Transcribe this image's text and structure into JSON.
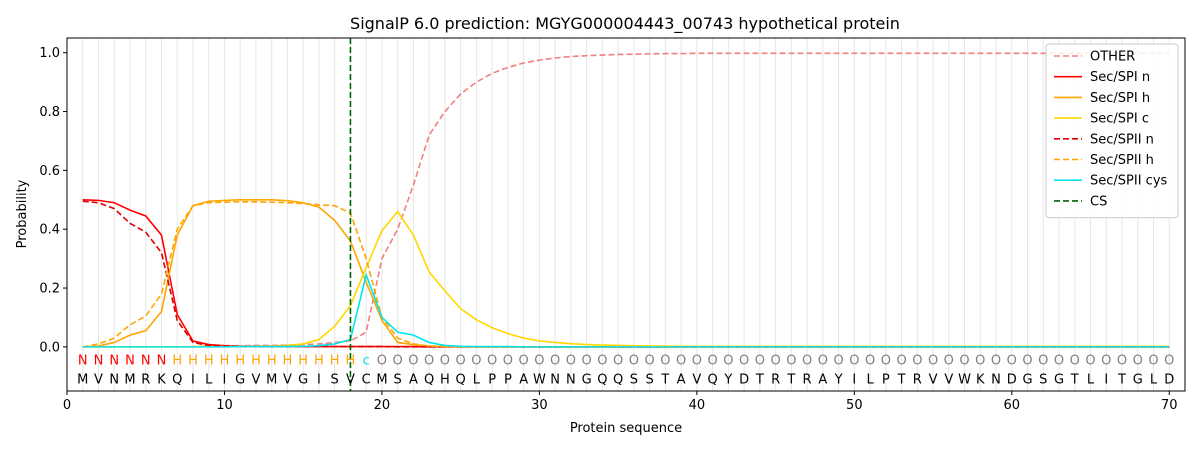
{
  "chart_data": {
    "type": "line",
    "title": "SignalP 6.0 prediction: MGYG000004443_00743 hypothetical protein",
    "xlabel": "Protein sequence",
    "ylabel": "Probability",
    "xlim": [
      0,
      71
    ],
    "ylim": [
      -0.15,
      1.05
    ],
    "xticks": [
      "0",
      "10",
      "20",
      "30",
      "40",
      "50",
      "60",
      "70"
    ],
    "yticks": [
      "0.0",
      "0.2",
      "0.4",
      "0.6",
      "0.8",
      "1.0"
    ],
    "grid": "vertical lines at each residue",
    "legend_position": "top-right",
    "sequence": "MVNMRKQILIGVMVGISVCMSAQHQLPPAWNNGQQSSTAVQYDTRTRAYILPTRVVWKNDGSGTLITGLD",
    "labels": "NNNNNNHHHHHHHHHHHHcOOOOOOOOOOOOOOOOOOOOOOOOOOOOOOOOOOOOOOOOOOOOOOOOOOO",
    "label_colors": {
      "N": "#ff0000",
      "H": "#ffa500",
      "c": "#00e5ee",
      "O": "#808080"
    },
    "cs_position": 18,
    "series": [
      {
        "name": "OTHER",
        "color": "#f08080",
        "dash": "dashed",
        "values": [
          0.0,
          0.0,
          0.0,
          0.0,
          0.0,
          0.0,
          0.0,
          0.0,
          0.003,
          0.004,
          0.004,
          0.005,
          0.005,
          0.006,
          0.008,
          0.01,
          0.015,
          0.02,
          0.05,
          0.3,
          0.4,
          0.55,
          0.72,
          0.8,
          0.86,
          0.9,
          0.93,
          0.95,
          0.965,
          0.975,
          0.982,
          0.987,
          0.99,
          0.992,
          0.994,
          0.995,
          0.996,
          0.997,
          0.997,
          0.998,
          0.998,
          0.998,
          0.998,
          0.998,
          0.998,
          0.998,
          0.998,
          0.998,
          0.998,
          0.998,
          0.998,
          0.998,
          0.998,
          0.998,
          0.998,
          0.998,
          0.998,
          0.998,
          0.998,
          0.998,
          0.998,
          0.998,
          0.998,
          0.998,
          0.998,
          0.998,
          0.998,
          0.998,
          0.998,
          0.998
        ]
      },
      {
        "name": "Sec/SPI n",
        "color": "#ff0000",
        "dash": "solid",
        "values": [
          0.5,
          0.498,
          0.49,
          0.465,
          0.445,
          0.38,
          0.11,
          0.02,
          0.008,
          0.004,
          0.002,
          0.002,
          0.001,
          0.001,
          0.001,
          0.001,
          0.001,
          0.001,
          0.001,
          0.001,
          0.001,
          0.001,
          0.0,
          0.0,
          0.0,
          0.0,
          0.0,
          0.0,
          0.0,
          0.0,
          0.0,
          0.0,
          0.0,
          0.0,
          0.0,
          0.0,
          0.0,
          0.0,
          0.0,
          0.0,
          0.0,
          0.0,
          0.0,
          0.0,
          0.0,
          0.0,
          0.0,
          0.0,
          0.0,
          0.0,
          0.0,
          0.0,
          0.0,
          0.0,
          0.0,
          0.0,
          0.0,
          0.0,
          0.0,
          0.0,
          0.0,
          0.0,
          0.0,
          0.0,
          0.0,
          0.0,
          0.0,
          0.0,
          0.0,
          0.0
        ]
      },
      {
        "name": "Sec/SPI h",
        "color": "#ffa500",
        "dash": "solid",
        "values": [
          0.0,
          0.003,
          0.015,
          0.04,
          0.055,
          0.12,
          0.38,
          0.48,
          0.495,
          0.498,
          0.5,
          0.5,
          0.5,
          0.497,
          0.49,
          0.475,
          0.43,
          0.36,
          0.22,
          0.09,
          0.015,
          0.008,
          0.003,
          0.001,
          0.0,
          0.0,
          0.0,
          0.0,
          0.0,
          0.0,
          0.0,
          0.0,
          0.0,
          0.0,
          0.0,
          0.0,
          0.0,
          0.0,
          0.0,
          0.0,
          0.0,
          0.0,
          0.0,
          0.0,
          0.0,
          0.0,
          0.0,
          0.0,
          0.0,
          0.0,
          0.0,
          0.0,
          0.0,
          0.0,
          0.0,
          0.0,
          0.0,
          0.0,
          0.0,
          0.0,
          0.0,
          0.0,
          0.0,
          0.0,
          0.0,
          0.0,
          0.0,
          0.0,
          0.0,
          0.0
        ]
      },
      {
        "name": "Sec/SPI c",
        "color": "#ffd700",
        "dash": "solid",
        "values": [
          0.0,
          0.0,
          0.0,
          0.0,
          0.0,
          0.0,
          0.0,
          0.001,
          0.001,
          0.001,
          0.002,
          0.002,
          0.003,
          0.005,
          0.01,
          0.025,
          0.07,
          0.14,
          0.27,
          0.395,
          0.46,
          0.38,
          0.255,
          0.19,
          0.13,
          0.092,
          0.065,
          0.045,
          0.03,
          0.02,
          0.015,
          0.011,
          0.008,
          0.006,
          0.005,
          0.004,
          0.003,
          0.003,
          0.002,
          0.002,
          0.002,
          0.002,
          0.002,
          0.002,
          0.002,
          0.002,
          0.002,
          0.002,
          0.002,
          0.002,
          0.002,
          0.002,
          0.002,
          0.002,
          0.002,
          0.002,
          0.002,
          0.002,
          0.002,
          0.002,
          0.002,
          0.002,
          0.002,
          0.002,
          0.002,
          0.002,
          0.002,
          0.002,
          0.002,
          0.002
        ]
      },
      {
        "name": "Sec/SPII n",
        "color": "#dd0000",
        "dash": "dashed",
        "values": [
          0.495,
          0.49,
          0.47,
          0.42,
          0.39,
          0.32,
          0.09,
          0.015,
          0.005,
          0.003,
          0.002,
          0.001,
          0.001,
          0.001,
          0.001,
          0.001,
          0.001,
          0.001,
          0.001,
          0.001,
          0.0,
          0.0,
          0.0,
          0.0,
          0.0,
          0.0,
          0.0,
          0.0,
          0.0,
          0.0,
          0.0,
          0.0,
          0.0,
          0.0,
          0.0,
          0.0,
          0.0,
          0.0,
          0.0,
          0.0,
          0.0,
          0.0,
          0.0,
          0.0,
          0.0,
          0.0,
          0.0,
          0.0,
          0.0,
          0.0,
          0.0,
          0.0,
          0.0,
          0.0,
          0.0,
          0.0,
          0.0,
          0.0,
          0.0,
          0.0,
          0.0,
          0.0,
          0.0,
          0.0,
          0.0,
          0.0,
          0.0,
          0.0,
          0.0,
          0.0
        ]
      },
      {
        "name": "Sec/SPII h",
        "color": "#ffa500",
        "dash": "dashed",
        "values": [
          0.0,
          0.01,
          0.03,
          0.075,
          0.105,
          0.18,
          0.4,
          0.48,
          0.49,
          0.492,
          0.493,
          0.493,
          0.492,
          0.49,
          0.487,
          0.483,
          0.48,
          0.455,
          0.3,
          0.1,
          0.03,
          0.01,
          0.003,
          0.001,
          0.0,
          0.0,
          0.0,
          0.0,
          0.0,
          0.0,
          0.0,
          0.0,
          0.0,
          0.0,
          0.0,
          0.0,
          0.0,
          0.0,
          0.0,
          0.0,
          0.0,
          0.0,
          0.0,
          0.0,
          0.0,
          0.0,
          0.0,
          0.0,
          0.0,
          0.0,
          0.0,
          0.0,
          0.0,
          0.0,
          0.0,
          0.0,
          0.0,
          0.0,
          0.0,
          0.0,
          0.0,
          0.0,
          0.0,
          0.0,
          0.0,
          0.0,
          0.0,
          0.0,
          0.0,
          0.0
        ]
      },
      {
        "name": "Sec/SPII cys",
        "color": "#00e5ee",
        "dash": "solid",
        "values": [
          0.0,
          0.0,
          0.0,
          0.0,
          0.0,
          0.0,
          0.0,
          0.0,
          0.0,
          0.0,
          0.001,
          0.001,
          0.001,
          0.001,
          0.002,
          0.004,
          0.01,
          0.025,
          0.245,
          0.1,
          0.05,
          0.04,
          0.015,
          0.005,
          0.002,
          0.001,
          0.001,
          0.001,
          0.0,
          0.0,
          0.0,
          0.0,
          0.0,
          0.0,
          0.0,
          0.0,
          0.0,
          0.0,
          0.0,
          0.0,
          0.0,
          0.0,
          0.0,
          0.0,
          0.0,
          0.0,
          0.0,
          0.0,
          0.0,
          0.0,
          0.0,
          0.0,
          0.0,
          0.0,
          0.0,
          0.0,
          0.0,
          0.0,
          0.0,
          0.0,
          0.0,
          0.0,
          0.0,
          0.0,
          0.0,
          0.0,
          0.0,
          0.0,
          0.0,
          0.0
        ]
      }
    ],
    "cs_legend": {
      "name": "CS",
      "color": "#006400",
      "dash": "dashed"
    }
  }
}
